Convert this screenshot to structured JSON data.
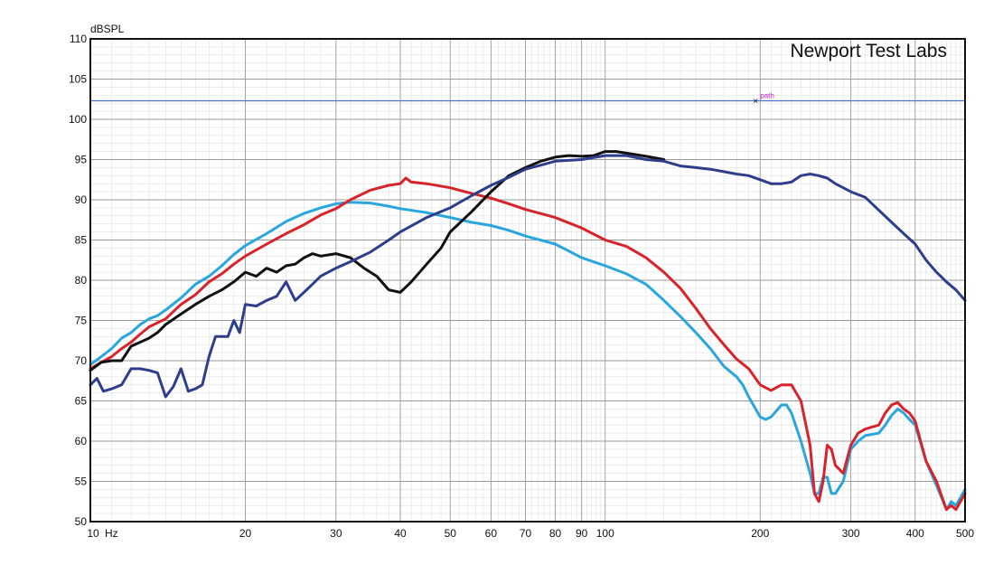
{
  "chart_data": {
    "type": "line",
    "title": "",
    "watermark": "Newport Test Labs",
    "ylabel": "dBSPL",
    "xlabel": "",
    "x_unit_label": "Hz",
    "x_scale": "log",
    "xlim": [
      10,
      500
    ],
    "ylim": [
      50,
      110
    ],
    "grid": true,
    "legend": "none",
    "x_tick_labels": [
      10,
      20,
      30,
      40,
      50,
      60,
      70,
      80,
      90,
      100,
      200,
      300,
      400,
      500
    ],
    "y_tick_labels": [
      50,
      55,
      60,
      65,
      70,
      75,
      80,
      85,
      90,
      95,
      100,
      105,
      110
    ],
    "reference_line": {
      "y": 102.3,
      "color": "#4a6fd1"
    },
    "marker": {
      "x": 196,
      "y": 102.3,
      "label": "path"
    },
    "series": [
      {
        "color": "#2aa6df",
        "points": [
          [
            10,
            69.5
          ],
          [
            10.5,
            70.5
          ],
          [
            11,
            71.5
          ],
          [
            11.5,
            72.8
          ],
          [
            12,
            73.5
          ],
          [
            12.5,
            74.5
          ],
          [
            13,
            75.2
          ],
          [
            13.5,
            75.6
          ],
          [
            14,
            76.3
          ],
          [
            15,
            77.8
          ],
          [
            16,
            79.5
          ],
          [
            17,
            80.5
          ],
          [
            18,
            81.8
          ],
          [
            19,
            83.2
          ],
          [
            20,
            84.3
          ],
          [
            22,
            85.8
          ],
          [
            24,
            87.3
          ],
          [
            26,
            88.3
          ],
          [
            28,
            89.0
          ],
          [
            30,
            89.5
          ],
          [
            32,
            89.7
          ],
          [
            35,
            89.6
          ],
          [
            38,
            89.2
          ],
          [
            40,
            88.9
          ],
          [
            45,
            88.4
          ],
          [
            50,
            87.8
          ],
          [
            55,
            87.2
          ],
          [
            60,
            86.8
          ],
          [
            65,
            86.2
          ],
          [
            70,
            85.5
          ],
          [
            80,
            84.5
          ],
          [
            90,
            82.8
          ],
          [
            100,
            81.8
          ],
          [
            110,
            80.8
          ],
          [
            120,
            79.5
          ],
          [
            130,
            77.5
          ],
          [
            140,
            75.5
          ],
          [
            150,
            73.5
          ],
          [
            160,
            71.5
          ],
          [
            170,
            69.3
          ],
          [
            180,
            68.0
          ],
          [
            185,
            67.0
          ],
          [
            190,
            65.5
          ],
          [
            200,
            63.0
          ],
          [
            205,
            62.7
          ],
          [
            210,
            63.0
          ],
          [
            220,
            64.5
          ],
          [
            225,
            64.5
          ],
          [
            230,
            63.5
          ],
          [
            240,
            60.0
          ],
          [
            250,
            56.0
          ],
          [
            255,
            53.5
          ],
          [
            260,
            53.5
          ],
          [
            265,
            55.5
          ],
          [
            270,
            55.5
          ],
          [
            275,
            53.5
          ],
          [
            280,
            53.5
          ],
          [
            290,
            55.0
          ],
          [
            300,
            59.0
          ],
          [
            310,
            60.0
          ],
          [
            320,
            60.7
          ],
          [
            340,
            61.0
          ],
          [
            350,
            62.0
          ],
          [
            360,
            63.2
          ],
          [
            370,
            64.0
          ],
          [
            380,
            63.5
          ],
          [
            390,
            62.7
          ],
          [
            400,
            62.0
          ],
          [
            420,
            57.5
          ],
          [
            440,
            54.5
          ],
          [
            460,
            51.5
          ],
          [
            470,
            52.5
          ],
          [
            480,
            52.0
          ],
          [
            490,
            53.0
          ],
          [
            500,
            54.0
          ]
        ]
      },
      {
        "color": "#d8232a",
        "points": [
          [
            10,
            69.0
          ],
          [
            10.5,
            69.8
          ],
          [
            11,
            70.5
          ],
          [
            11.5,
            71.5
          ],
          [
            12,
            72.3
          ],
          [
            12.5,
            73.3
          ],
          [
            13,
            74.2
          ],
          [
            14,
            75.2
          ],
          [
            15,
            77.0
          ],
          [
            16,
            78.2
          ],
          [
            17,
            79.8
          ],
          [
            18,
            80.8
          ],
          [
            19,
            82.0
          ],
          [
            20,
            83.0
          ],
          [
            22,
            84.5
          ],
          [
            24,
            85.8
          ],
          [
            26,
            86.9
          ],
          [
            28,
            88.1
          ],
          [
            30,
            88.9
          ],
          [
            32,
            90.0
          ],
          [
            35,
            91.2
          ],
          [
            38,
            91.8
          ],
          [
            40,
            92.0
          ],
          [
            41,
            92.7
          ],
          [
            42,
            92.2
          ],
          [
            45,
            92.0
          ],
          [
            50,
            91.5
          ],
          [
            55,
            90.8
          ],
          [
            60,
            90.2
          ],
          [
            65,
            89.5
          ],
          [
            70,
            88.8
          ],
          [
            80,
            87.8
          ],
          [
            90,
            86.5
          ],
          [
            100,
            85.0
          ],
          [
            110,
            84.2
          ],
          [
            120,
            82.8
          ],
          [
            130,
            81.0
          ],
          [
            140,
            79.0
          ],
          [
            150,
            76.5
          ],
          [
            160,
            74.0
          ],
          [
            170,
            72.0
          ],
          [
            180,
            70.2
          ],
          [
            190,
            69.0
          ],
          [
            200,
            67.0
          ],
          [
            210,
            66.3
          ],
          [
            220,
            67.0
          ],
          [
            230,
            67.0
          ],
          [
            240,
            65.0
          ],
          [
            250,
            59.5
          ],
          [
            255,
            53.5
          ],
          [
            260,
            52.5
          ],
          [
            265,
            55.0
          ],
          [
            270,
            59.5
          ],
          [
            275,
            59.0
          ],
          [
            280,
            57.0
          ],
          [
            290,
            56.0
          ],
          [
            300,
            59.5
          ],
          [
            310,
            61.0
          ],
          [
            320,
            61.5
          ],
          [
            340,
            62.0
          ],
          [
            350,
            63.5
          ],
          [
            360,
            64.5
          ],
          [
            370,
            64.8
          ],
          [
            380,
            64.0
          ],
          [
            390,
            63.5
          ],
          [
            400,
            62.5
          ],
          [
            420,
            57.5
          ],
          [
            440,
            55.0
          ],
          [
            460,
            51.5
          ],
          [
            470,
            52.0
          ],
          [
            480,
            51.5
          ],
          [
            490,
            52.5
          ],
          [
            500,
            53.5
          ]
        ]
      },
      {
        "color": "#111111",
        "points": [
          [
            10,
            68.8
          ],
          [
            10.5,
            69.8
          ],
          [
            11,
            70.0
          ],
          [
            11.5,
            70.0
          ],
          [
            12,
            71.8
          ],
          [
            12.5,
            72.3
          ],
          [
            13,
            72.8
          ],
          [
            13.5,
            73.5
          ],
          [
            14,
            74.5
          ],
          [
            15,
            75.8
          ],
          [
            16,
            77.0
          ],
          [
            17,
            78.0
          ],
          [
            18,
            78.8
          ],
          [
            19,
            79.8
          ],
          [
            20,
            81.0
          ],
          [
            21,
            80.5
          ],
          [
            22,
            81.5
          ],
          [
            23,
            81.0
          ],
          [
            24,
            81.8
          ],
          [
            25,
            82.0
          ],
          [
            26,
            82.8
          ],
          [
            27,
            83.3
          ],
          [
            28,
            83.0
          ],
          [
            30,
            83.3
          ],
          [
            32,
            82.8
          ],
          [
            34,
            81.5
          ],
          [
            36,
            80.5
          ],
          [
            38,
            78.8
          ],
          [
            40,
            78.5
          ],
          [
            42,
            79.8
          ],
          [
            45,
            82.0
          ],
          [
            48,
            84.0
          ],
          [
            50,
            86.0
          ],
          [
            55,
            88.5
          ],
          [
            60,
            91.0
          ],
          [
            65,
            93.0
          ],
          [
            70,
            94.0
          ],
          [
            75,
            94.8
          ],
          [
            80,
            95.3
          ],
          [
            85,
            95.5
          ],
          [
            90,
            95.4
          ],
          [
            95,
            95.5
          ],
          [
            100,
            96.0
          ],
          [
            105,
            96.0
          ],
          [
            110,
            95.8
          ],
          [
            120,
            95.4
          ],
          [
            130,
            95.0
          ]
        ]
      },
      {
        "color": "#2e3e8c",
        "points": [
          [
            10,
            67.0
          ],
          [
            10.3,
            67.8
          ],
          [
            10.6,
            66.2
          ],
          [
            11,
            66.5
          ],
          [
            11.5,
            67.0
          ],
          [
            12,
            69.0
          ],
          [
            12.5,
            69.0
          ],
          [
            13,
            68.8
          ],
          [
            13.5,
            68.5
          ],
          [
            14,
            65.5
          ],
          [
            14.5,
            66.8
          ],
          [
            15,
            69.0
          ],
          [
            15.5,
            66.2
          ],
          [
            16,
            66.5
          ],
          [
            16.5,
            67.0
          ],
          [
            17,
            70.5
          ],
          [
            17.5,
            73.0
          ],
          [
            18,
            73.0
          ],
          [
            18.5,
            73.0
          ],
          [
            19,
            75.0
          ],
          [
            19.5,
            73.5
          ],
          [
            20,
            77.0
          ],
          [
            21,
            76.8
          ],
          [
            22,
            77.5
          ],
          [
            23,
            78.0
          ],
          [
            24,
            79.8
          ],
          [
            25,
            77.5
          ],
          [
            26,
            78.5
          ],
          [
            27,
            79.5
          ],
          [
            28,
            80.5
          ],
          [
            30,
            81.5
          ],
          [
            32,
            82.3
          ],
          [
            35,
            83.5
          ],
          [
            38,
            85.0
          ],
          [
            40,
            86.0
          ],
          [
            45,
            87.8
          ],
          [
            50,
            89.0
          ],
          [
            55,
            90.5
          ],
          [
            60,
            91.8
          ],
          [
            65,
            92.8
          ],
          [
            70,
            93.8
          ],
          [
            75,
            94.3
          ],
          [
            80,
            94.8
          ],
          [
            90,
            95.0
          ],
          [
            100,
            95.5
          ],
          [
            110,
            95.5
          ],
          [
            120,
            95.0
          ],
          [
            130,
            94.8
          ],
          [
            140,
            94.2
          ],
          [
            150,
            94.0
          ],
          [
            160,
            93.8
          ],
          [
            170,
            93.5
          ],
          [
            180,
            93.2
          ],
          [
            190,
            93.0
          ],
          [
            200,
            92.5
          ],
          [
            210,
            92.0
          ],
          [
            220,
            92.0
          ],
          [
            230,
            92.2
          ],
          [
            240,
            93.0
          ],
          [
            250,
            93.2
          ],
          [
            260,
            93.0
          ],
          [
            270,
            92.7
          ],
          [
            280,
            92.0
          ],
          [
            290,
            91.5
          ],
          [
            300,
            91.0
          ],
          [
            320,
            90.3
          ],
          [
            340,
            88.7
          ],
          [
            360,
            87.2
          ],
          [
            380,
            85.8
          ],
          [
            400,
            84.5
          ],
          [
            420,
            82.5
          ],
          [
            440,
            81.0
          ],
          [
            460,
            79.8
          ],
          [
            480,
            78.8
          ],
          [
            500,
            77.5
          ]
        ]
      }
    ]
  }
}
